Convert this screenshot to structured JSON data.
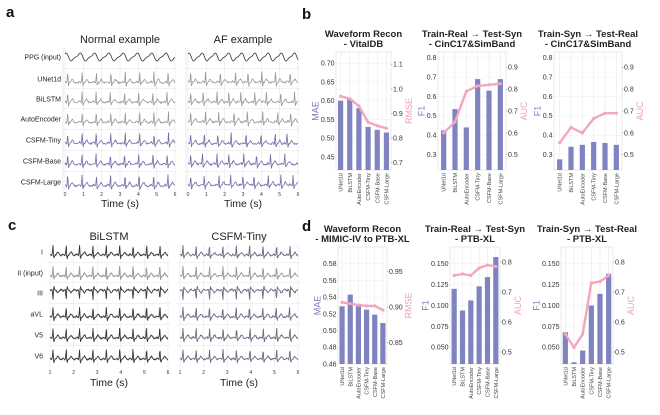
{
  "panels": {
    "a": "a",
    "b": "b",
    "c": "c",
    "d": "d"
  },
  "colors": {
    "bar": "#7f84c0",
    "line": "#f4a6bf",
    "left_axis": "#7b7fb8",
    "right_axis": "#f0a0b8",
    "ppg": "#333333",
    "baseline_gray": "#999999",
    "csfm": "#6f6fa8",
    "grid": "#e4e4e4"
  },
  "chart_data": [
    {
      "id": "a",
      "type": "line",
      "column_titles": [
        "Normal example",
        "AF example"
      ],
      "rows": [
        "PPG (input)",
        "UNet1d",
        "BiLSTM",
        "AutoEncoder",
        "CSFM-Tiny",
        "CSFM-Base",
        "CSFM-Large"
      ],
      "xticks": [
        "0",
        "1",
        "2",
        "3",
        "4",
        "5",
        "6"
      ],
      "xlabel": "Time (s)",
      "xlim": [
        0,
        6
      ]
    },
    {
      "id": "c",
      "type": "line",
      "column_titles": [
        "BiLSTM",
        "CSFM-Tiny"
      ],
      "rows": [
        "I",
        "II (input)",
        "III",
        "aVL",
        "V5",
        "V6"
      ],
      "xticks": [
        "1",
        "2",
        "3",
        "4",
        "5",
        "6"
      ],
      "xlabel": "Time (s)",
      "xlim": [
        1,
        6
      ]
    },
    {
      "id": "b1",
      "type": "bar",
      "title": [
        "Waveform Recon",
        "- VitalDB"
      ],
      "categories": [
        "UNet1d",
        "BiLSTM",
        "AutoEncoder",
        "CSFM-Tiny",
        "CSFM-Base",
        "CSFM-Large"
      ],
      "ylabel": "MAE",
      "ylim": [
        0.415,
        0.73
      ],
      "yticks": [
        "0.45",
        "0.50",
        "0.55",
        "0.60",
        "0.65",
        "0.70"
      ],
      "values": [
        0.6,
        0.605,
        0.58,
        0.53,
        0.522,
        0.515
      ],
      "y2label": "RMSE",
      "y2lim": [
        0.67,
        1.15
      ],
      "y2ticks": [
        "0.7",
        "0.8",
        "0.9",
        "1.0",
        "1.1"
      ],
      "line_values": [
        0.97,
        0.96,
        0.93,
        0.865,
        0.85,
        0.84
      ]
    },
    {
      "id": "b2",
      "type": "bar",
      "title": [
        "Train-Real → Test-Syn",
        "- CinC17&SimBand"
      ],
      "categories": [
        "UNet1d",
        "BiLSTM",
        "AutoEncoder",
        "CSFM-Tiny",
        "CSFM-Base",
        "CSFM-Large"
      ],
      "ylabel": "F1",
      "ylim": [
        0.22,
        0.83
      ],
      "yticks": [
        "0.3",
        "0.4",
        "0.5",
        "0.6",
        "0.7",
        "0.8"
      ],
      "values": [
        0.425,
        0.535,
        0.44,
        0.69,
        0.63,
        0.69
      ],
      "y2label": "AUC",
      "y2lim": [
        0.43,
        0.97
      ],
      "y2ticks": [
        "0.5",
        "0.6",
        "0.7",
        "0.8",
        "0.9"
      ],
      "line_values": [
        0.6,
        0.65,
        0.79,
        0.815,
        0.82,
        0.825
      ]
    },
    {
      "id": "b3",
      "type": "bar",
      "title": [
        "Train-Syn → Test-Real",
        "- CinC17&SimBand"
      ],
      "categories": [
        "UNet1d",
        "BiLSTM",
        "AutoEncoder",
        "CSFM-Tiny",
        "CSFM-Base",
        "CSFM-Large"
      ],
      "ylabel": "F1",
      "ylim": [
        0.22,
        0.83
      ],
      "yticks": [
        "0.3",
        "0.4",
        "0.5",
        "0.6",
        "0.7",
        "0.8"
      ],
      "values": [
        0.275,
        0.34,
        0.35,
        0.365,
        0.36,
        0.35
      ],
      "y2label": "AUC",
      "y2lim": [
        0.43,
        0.97
      ],
      "y2ticks": [
        "0.5",
        "0.6",
        "0.7",
        "0.8",
        "0.9"
      ],
      "line_values": [
        0.555,
        0.625,
        0.6,
        0.665,
        0.69,
        0.69
      ]
    },
    {
      "id": "d1",
      "type": "bar",
      "title": [
        "Waveform Recon",
        "- MIMIC-IV to PTB-XL"
      ],
      "categories": [
        "UNet1d",
        "BiLSTM",
        "AutoEncoder",
        "CSFM-Tiny",
        "CSFM-Base",
        "CSFM-Large"
      ],
      "ylabel": "MAE",
      "ylim": [
        0.46,
        0.6
      ],
      "yticks": [
        "0.46",
        "0.48",
        "0.50",
        "0.52",
        "0.54",
        "0.56",
        "0.58"
      ],
      "values": [
        0.529,
        0.543,
        0.532,
        0.525,
        0.519,
        0.509
      ],
      "y2label": "RMSE",
      "y2lim": [
        0.82,
        0.985
      ],
      "y2ticks": [
        "0.85",
        "0.90",
        "0.95"
      ],
      "line_values": [
        0.907,
        0.905,
        0.903,
        0.902,
        0.902,
        0.896
      ]
    },
    {
      "id": "d2",
      "type": "bar",
      "title": [
        "Train-Real → Test-Syn",
        "- PTB-XL"
      ],
      "categories": [
        "UNet1d",
        "BiLSTM",
        "AutoEncoder",
        "CSFM-Tiny",
        "CSFM-Base",
        "CSFM-Large"
      ],
      "ylabel": "F1",
      "ylim": [
        0.03,
        0.17
      ],
      "yticks": [
        "0.050",
        "0.075",
        "0.100",
        "0.125",
        "0.150"
      ],
      "values": [
        0.12,
        0.094,
        0.106,
        0.123,
        0.134,
        0.158
      ],
      "y2label": "AUC",
      "y2lim": [
        0.46,
        0.85
      ],
      "y2ticks": [
        "0.5",
        "0.6",
        "0.7",
        "0.8"
      ],
      "line_values": [
        0.755,
        0.76,
        0.755,
        0.78,
        0.79,
        0.785
      ]
    },
    {
      "id": "d3",
      "type": "bar",
      "title": [
        "Train-Syn → Test-Real",
        "- PTB-XL"
      ],
      "categories": [
        "UNet1d",
        "BiLSTM",
        "AutoEncoder",
        "CSFM-Tiny",
        "CSFM-Base",
        "CSFM-Large"
      ],
      "ylabel": "F1",
      "ylim": [
        0.03,
        0.17
      ],
      "yticks": [
        "0.050",
        "0.075",
        "0.100",
        "0.125",
        "0.150"
      ],
      "values": [
        0.068,
        0.032,
        0.046,
        0.1,
        0.114,
        0.138
      ],
      "y2label": "AUC",
      "y2lim": [
        0.46,
        0.85
      ],
      "y2ticks": [
        "0.5",
        "0.6",
        "0.7",
        "0.8"
      ],
      "line_values": [
        0.56,
        0.515,
        0.56,
        0.73,
        0.735,
        0.755
      ]
    }
  ]
}
